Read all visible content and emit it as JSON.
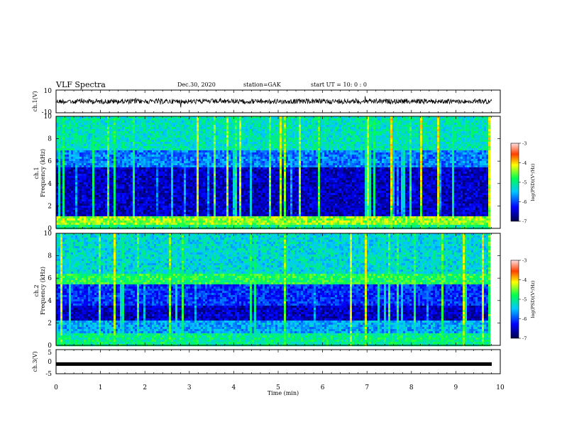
{
  "header": {
    "title": "VLF Spectra",
    "date": "Dec.30, 2020",
    "station": "station=GAK",
    "start": "start  UT =   10: 0  : 0"
  },
  "chart_data": [
    {
      "type": "line",
      "name": "waveform-ch1",
      "ylabel": "ch.1(V)",
      "ylim": [
        -10,
        10
      ],
      "y_tick_labels": [
        "10",
        "-10"
      ],
      "baseline_level": 0
    },
    {
      "type": "heatmap",
      "name": "spectrogram-ch1",
      "ylabel": "ch.1\nFrequency (kHz)",
      "ylim": [
        0,
        10
      ],
      "y_tick_labels": [
        "0",
        "2",
        "4",
        "6",
        "8",
        "10"
      ],
      "colorbar": {
        "label": "log(PSD)(V²/Hz)",
        "range": [
          -7,
          -3
        ],
        "tick_labels": [
          "-3",
          "-4",
          "-5",
          "-6",
          "-7"
        ]
      }
    },
    {
      "type": "heatmap",
      "name": "spectrogram-ch2",
      "ylabel": "ch.2\nFrequency (kHz)",
      "ylim": [
        0,
        10
      ],
      "y_tick_labels": [
        "0",
        "2",
        "4",
        "6",
        "8",
        "10"
      ],
      "colorbar": {
        "label": "log(PSD)(V²/Hz)",
        "range": [
          -7,
          -3
        ],
        "tick_labels": [
          "-3",
          "-4",
          "-5",
          "-6",
          "-7"
        ]
      }
    },
    {
      "type": "line",
      "name": "waveform-ch3",
      "ylabel": "ch.3(V)",
      "ylim": [
        -5,
        5
      ],
      "y_tick_labels": [
        "5",
        "0",
        "-5"
      ],
      "baseline_level": -1
    }
  ],
  "x_axis": {
    "label": "Time (min)",
    "range": [
      0,
      10
    ],
    "tick_labels": [
      "0",
      "1",
      "2",
      "3",
      "4",
      "5",
      "6",
      "7",
      "8",
      "9",
      "10"
    ]
  },
  "colors": {
    "spectrogram_low": "#00004a",
    "spectrogram_mid": "#1a64ff",
    "spectrogram_high": "#ff1a00",
    "trace": "#000000"
  }
}
